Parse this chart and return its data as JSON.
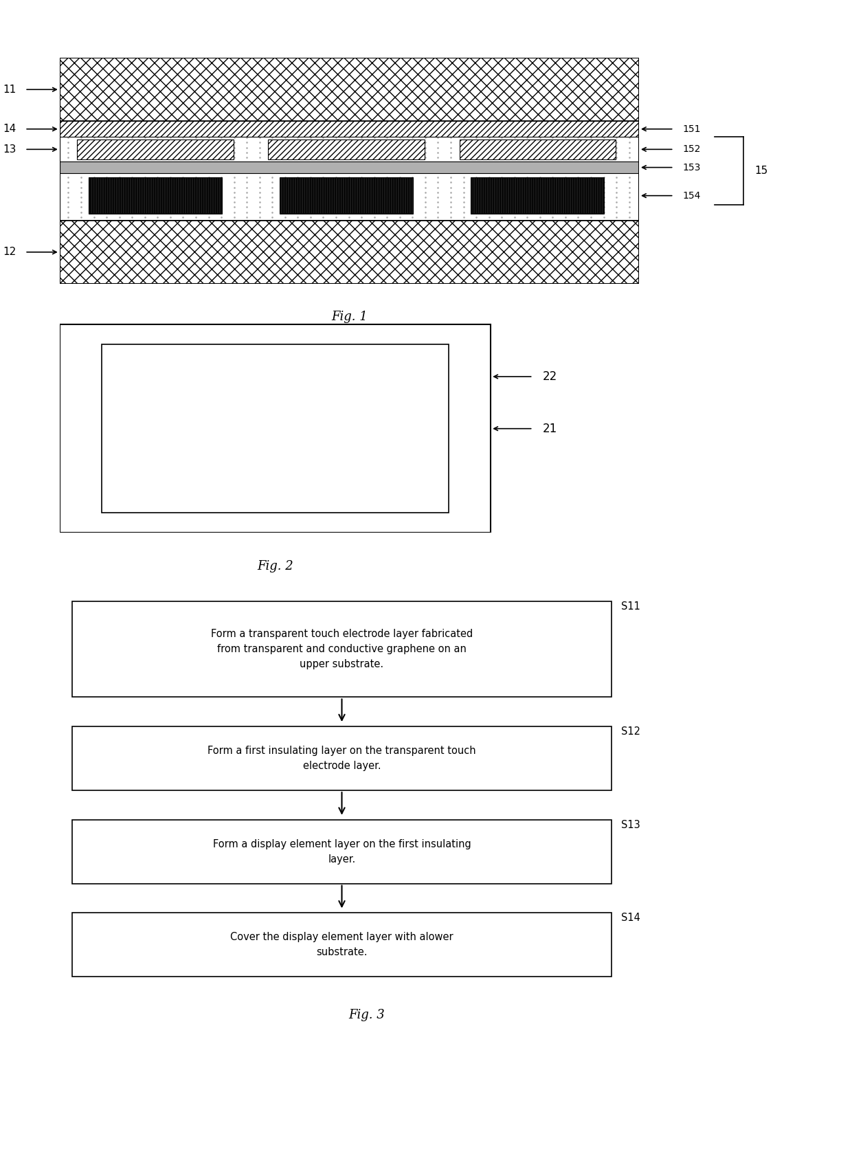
{
  "bg_color": "#ffffff",
  "fig1": {
    "title": "Fig. 1"
  },
  "fig2": {
    "title": "Fig. 2"
  },
  "fig3": {
    "title": "Fig. 3",
    "steps": [
      {
        "label": "S11",
        "text": "Form a transparent touch electrode layer fabricated\nfrom transparent and conductive graphene on an\nupper substrate."
      },
      {
        "label": "S12",
        "text": "Form a first insulating layer on the transparent touch\nelectrode layer."
      },
      {
        "label": "S13",
        "text": "Form a display element layer on the first insulating\nlayer."
      },
      {
        "label": "S14",
        "text": "Cover the display element layer with alower\nsubstrate."
      }
    ]
  }
}
